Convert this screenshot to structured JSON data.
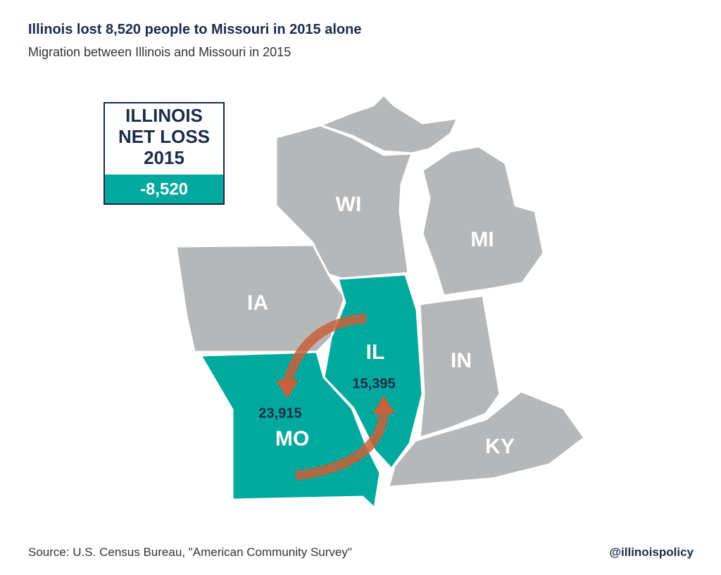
{
  "header": {
    "title": "Illinois lost 8,520 people to Missouri in 2015 alone",
    "subtitle": "Migration between Illinois and Missouri in 2015"
  },
  "callout": {
    "lines": [
      "ILLINOIS",
      "NET LOSS",
      "2015"
    ],
    "value": "-8,520"
  },
  "states": [
    {
      "label": "WI"
    },
    {
      "label": "MI"
    },
    {
      "label": "IA"
    },
    {
      "label": "IL"
    },
    {
      "label": "IN"
    },
    {
      "label": "KY"
    },
    {
      "label": "MO"
    }
  ],
  "flows": [
    {
      "label": "23,915"
    },
    {
      "label": "15,395"
    }
  ],
  "footer": {
    "source": "Source: U.S. Census Bureau, \"American Community Survey\"",
    "handle": "@illinoispolicy"
  }
}
